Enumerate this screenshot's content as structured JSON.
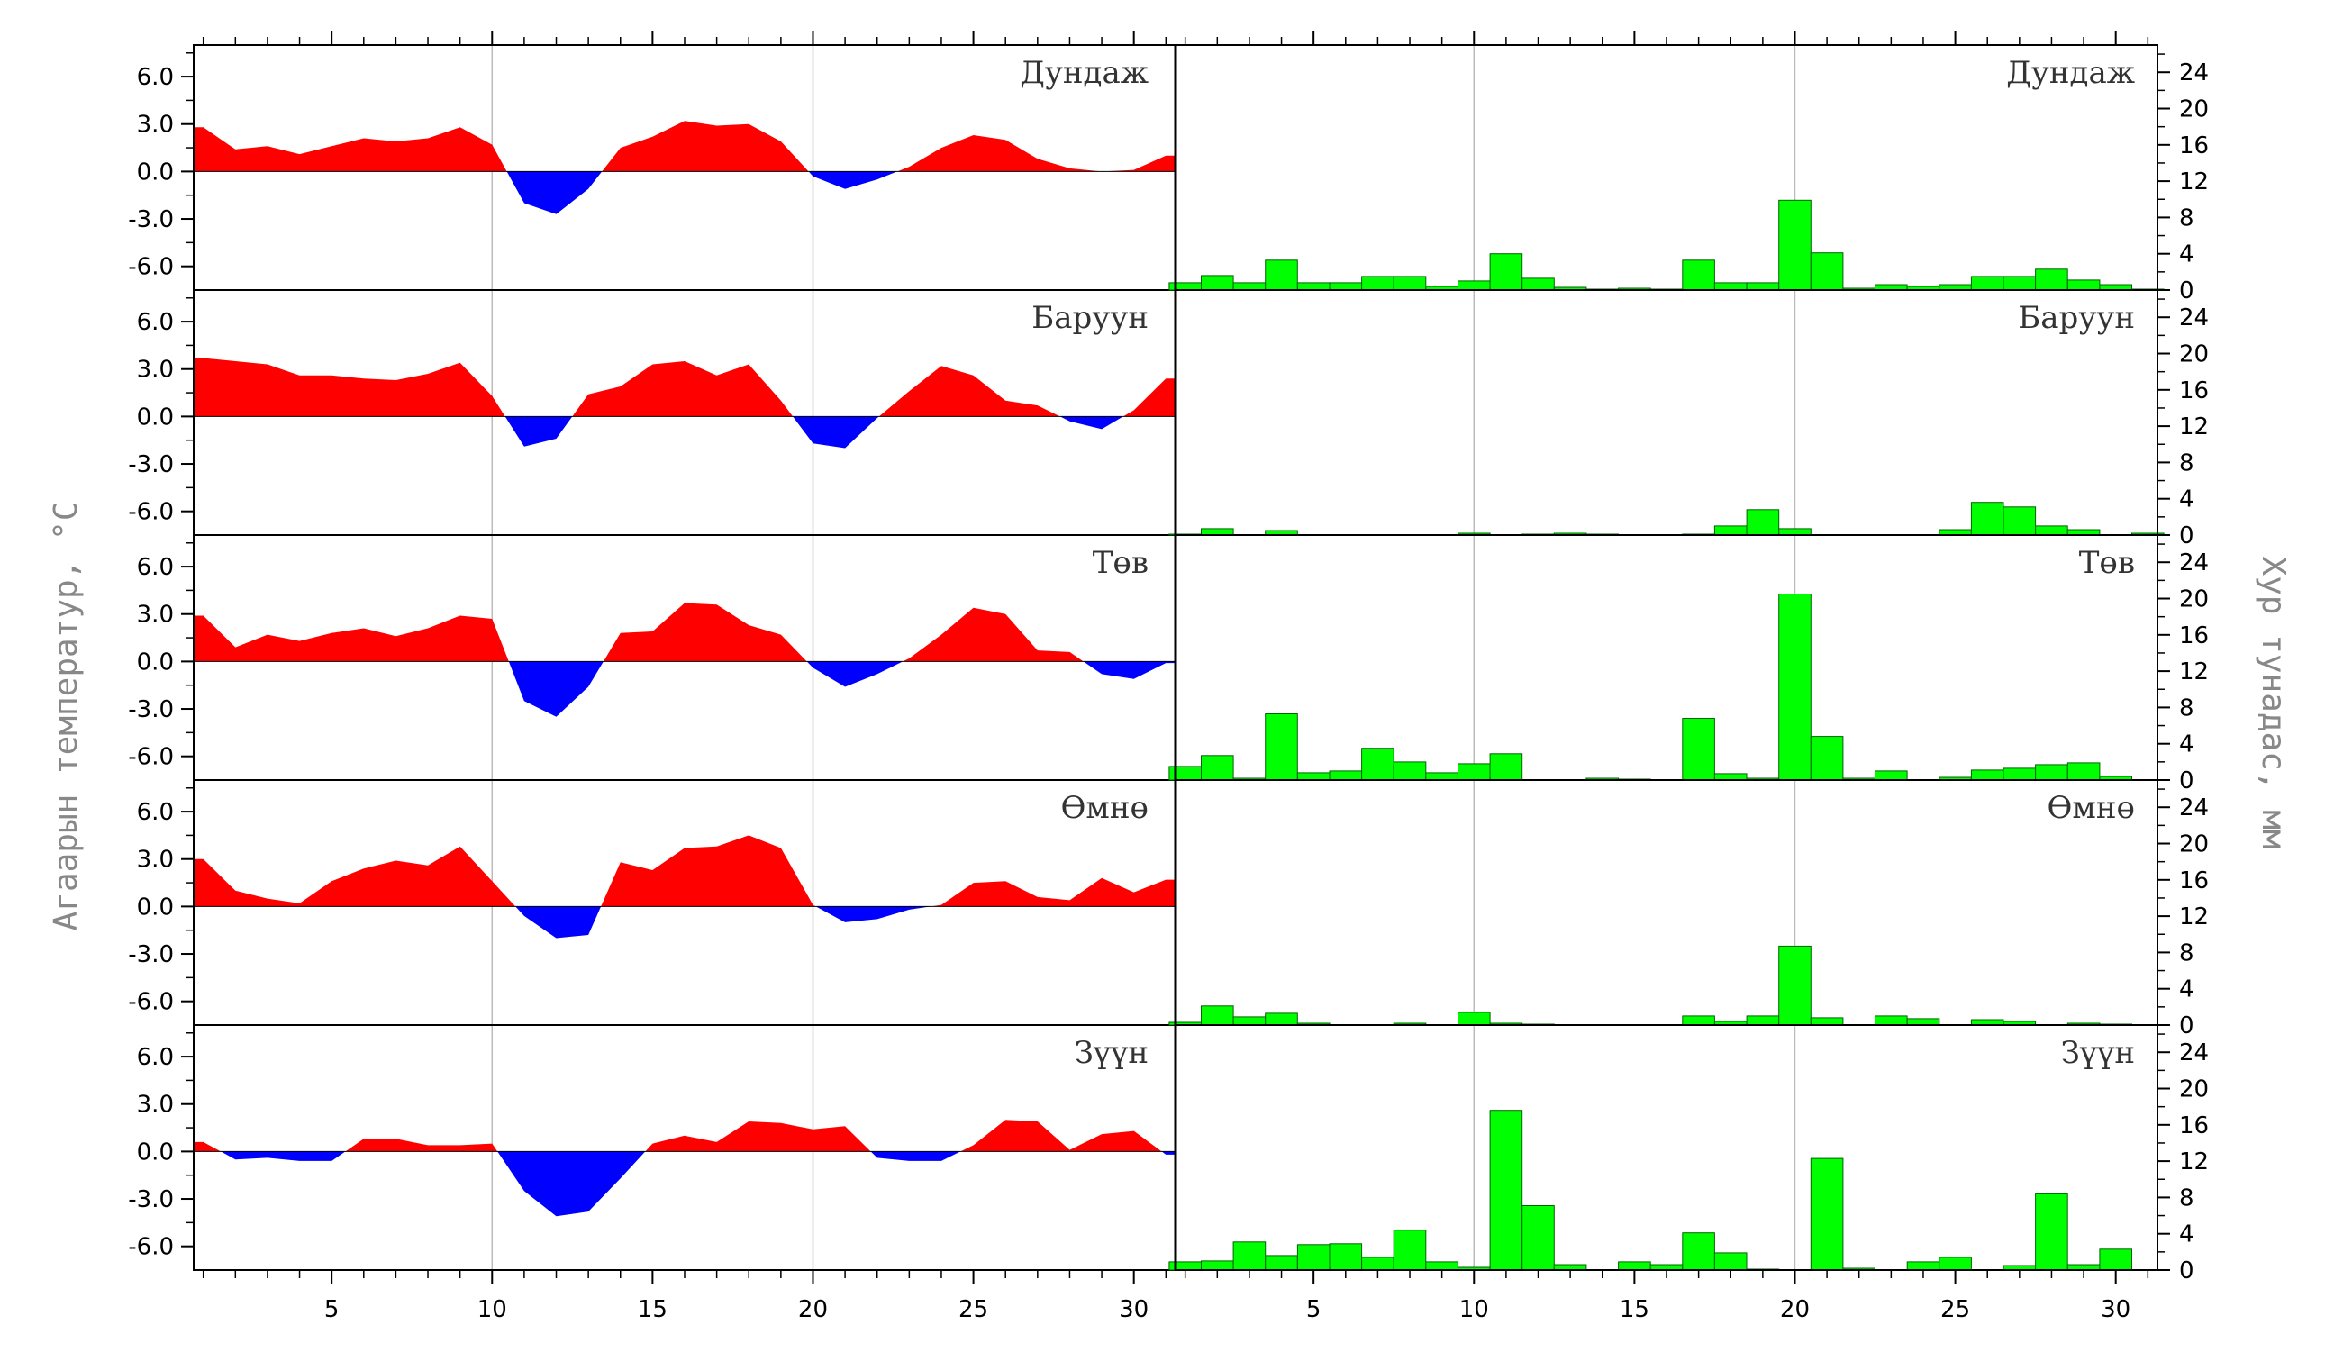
{
  "axis_titles": {
    "left": "Агаарын температур, °C",
    "right": "Хур тунадас, мм"
  },
  "colors": {
    "positive": "#ff0000",
    "negative": "#0000ff",
    "bar": "#00ff00",
    "bar_edge": "#006400",
    "grid": "#bbbbbb"
  },
  "chart_data": [
    {
      "type": "area",
      "panel": "Дундаж",
      "x": [
        1,
        2,
        3,
        4,
        5,
        6,
        7,
        8,
        9,
        10,
        11,
        12,
        13,
        14,
        15,
        16,
        17,
        18,
        19,
        20,
        21,
        22,
        23,
        24,
        25,
        26,
        27,
        28,
        29,
        30,
        31
      ],
      "values": [
        2.8,
        1.4,
        1.6,
        1.1,
        1.6,
        2.1,
        1.9,
        2.1,
        2.8,
        1.7,
        -2.0,
        -2.7,
        -1.1,
        1.5,
        2.2,
        3.2,
        2.9,
        3.0,
        1.9,
        -0.3,
        -1.1,
        -0.5,
        0.3,
        1.5,
        2.3,
        2.0,
        0.8,
        0.2,
        0.0,
        0.1,
        1.0
      ],
      "ylim": [
        -7.5,
        8.0
      ],
      "yticks": [
        "6.0",
        "3.0",
        "0.0",
        "-3.0",
        "-6.0"
      ],
      "grid_x": [
        10,
        20
      ]
    },
    {
      "type": "area",
      "panel": "Баруун",
      "x": [
        1,
        2,
        3,
        4,
        5,
        6,
        7,
        8,
        9,
        10,
        11,
        12,
        13,
        14,
        15,
        16,
        17,
        18,
        19,
        20,
        21,
        22,
        23,
        24,
        25,
        26,
        27,
        28,
        29,
        30,
        31
      ],
      "values": [
        3.7,
        3.5,
        3.3,
        2.6,
        2.6,
        2.4,
        2.3,
        2.7,
        3.4,
        1.3,
        -1.9,
        -1.4,
        1.4,
        1.9,
        3.3,
        3.5,
        2.6,
        3.3,
        1.0,
        -1.7,
        -2.0,
        -0.1,
        1.6,
        3.2,
        2.6,
        1.0,
        0.7,
        -0.3,
        -0.8,
        0.4,
        2.4
      ],
      "ylim": [
        -7.5,
        8.0
      ],
      "yticks": [
        "6.0",
        "3.0",
        "0.0",
        "-3.0",
        "-6.0"
      ],
      "grid_x": [
        10,
        20
      ]
    },
    {
      "type": "area",
      "panel": "Төв",
      "x": [
        1,
        2,
        3,
        4,
        5,
        6,
        7,
        8,
        9,
        10,
        11,
        12,
        13,
        14,
        15,
        16,
        17,
        18,
        19,
        20,
        21,
        22,
        23,
        24,
        25,
        26,
        27,
        28,
        29,
        30,
        31
      ],
      "values": [
        2.9,
        0.9,
        1.7,
        1.3,
        1.8,
        2.1,
        1.6,
        2.1,
        2.9,
        2.7,
        -2.5,
        -3.5,
        -1.6,
        1.8,
        1.9,
        3.7,
        3.6,
        2.3,
        1.7,
        -0.4,
        -1.6,
        -0.8,
        0.2,
        1.7,
        3.4,
        3.0,
        0.7,
        0.6,
        -0.8,
        -1.1,
        -0.1
      ],
      "ylim": [
        -7.5,
        8.0
      ],
      "yticks": [
        "6.0",
        "3.0",
        "0.0",
        "-3.0",
        "-6.0"
      ],
      "grid_x": [
        10,
        20
      ]
    },
    {
      "type": "area",
      "panel": "Өмнө",
      "x": [
        1,
        2,
        3,
        4,
        5,
        6,
        7,
        8,
        9,
        10,
        11,
        12,
        13,
        14,
        15,
        16,
        17,
        18,
        19,
        20,
        21,
        22,
        23,
        24,
        25,
        26,
        27,
        28,
        29,
        30,
        31
      ],
      "values": [
        3.0,
        1.0,
        0.5,
        0.2,
        1.6,
        2.4,
        2.9,
        2.6,
        3.8,
        1.6,
        -0.6,
        -2.0,
        -1.8,
        2.8,
        2.3,
        3.7,
        3.8,
        4.5,
        3.7,
        0.1,
        -1.0,
        -0.8,
        -0.2,
        0.1,
        1.5,
        1.6,
        0.6,
        0.4,
        1.8,
        0.9,
        1.7
      ],
      "ylim": [
        -7.5,
        8.0
      ],
      "yticks": [
        "6.0",
        "3.0",
        "0.0",
        "-3.0",
        "-6.0"
      ],
      "grid_x": [
        10,
        20
      ]
    },
    {
      "type": "area",
      "panel": "Зүүн",
      "x": [
        1,
        2,
        3,
        4,
        5,
        6,
        7,
        8,
        9,
        10,
        11,
        12,
        13,
        14,
        15,
        16,
        17,
        18,
        19,
        20,
        21,
        22,
        23,
        24,
        25,
        26,
        27,
        28,
        29,
        30,
        31
      ],
      "values": [
        0.6,
        -0.5,
        -0.4,
        -0.6,
        -0.6,
        0.8,
        0.8,
        0.4,
        0.4,
        0.5,
        -2.5,
        -4.1,
        -3.8,
        -1.7,
        0.5,
        1.0,
        0.6,
        1.9,
        1.8,
        1.4,
        1.6,
        -0.4,
        -0.6,
        -0.6,
        0.4,
        2.0,
        1.9,
        0.1,
        1.1,
        1.3,
        -0.2
      ],
      "ylim": [
        -7.5,
        8.0
      ],
      "yticks": [
        "6.0",
        "3.0",
        "0.0",
        "-3.0",
        "-6.0"
      ],
      "grid_x": [
        10,
        20
      ]
    },
    {
      "type": "bar",
      "panel": "Дундаж",
      "x": [
        1,
        2,
        3,
        4,
        5,
        6,
        7,
        8,
        9,
        10,
        11,
        12,
        13,
        14,
        15,
        16,
        17,
        18,
        19,
        20,
        21,
        22,
        23,
        24,
        25,
        26,
        27,
        28,
        29,
        30,
        31
      ],
      "values": [
        0.8,
        1.6,
        0.8,
        3.3,
        0.8,
        0.8,
        1.5,
        1.5,
        0.4,
        1.0,
        4.0,
        1.3,
        0.3,
        0.1,
        0.2,
        0.1,
        3.3,
        0.8,
        0.8,
        9.9,
        4.1,
        0.2,
        0.6,
        0.4,
        0.6,
        1.5,
        1.5,
        2.3,
        1.1,
        0.6,
        0.1
      ],
      "ylim": [
        0,
        27
      ],
      "yticks": [
        "24",
        "20",
        "16",
        "12",
        "8",
        "4",
        "0"
      ],
      "grid_x": [
        10,
        20
      ]
    },
    {
      "type": "bar",
      "panel": "Баруун",
      "x": [
        1,
        2,
        3,
        4,
        5,
        6,
        7,
        8,
        9,
        10,
        11,
        12,
        13,
        14,
        15,
        16,
        17,
        18,
        19,
        20,
        21,
        22,
        23,
        24,
        25,
        26,
        27,
        28,
        29,
        30,
        31
      ],
      "values": [
        0.1,
        0.7,
        0.0,
        0.5,
        0.0,
        0.0,
        0.0,
        0.0,
        0.0,
        0.2,
        0.0,
        0.1,
        0.2,
        0.1,
        0.0,
        0.0,
        0.1,
        1.0,
        2.8,
        0.7,
        0.0,
        0.0,
        0.0,
        0.0,
        0.6,
        3.6,
        3.1,
        1.0,
        0.6,
        0.0,
        0.2
      ],
      "ylim": [
        0,
        27
      ],
      "yticks": [
        "24",
        "20",
        "16",
        "12",
        "8",
        "4",
        "0"
      ],
      "grid_x": [
        10,
        20
      ]
    },
    {
      "type": "bar",
      "panel": "Төв",
      "x": [
        1,
        2,
        3,
        4,
        5,
        6,
        7,
        8,
        9,
        10,
        11,
        12,
        13,
        14,
        15,
        16,
        17,
        18,
        19,
        20,
        21,
        22,
        23,
        24,
        25,
        26,
        27,
        28,
        29,
        30,
        31
      ],
      "values": [
        1.5,
        2.7,
        0.2,
        7.3,
        0.8,
        1.0,
        3.5,
        2.0,
        0.8,
        1.8,
        2.9,
        0.0,
        0.0,
        0.2,
        0.1,
        0.0,
        6.8,
        0.7,
        0.2,
        20.5,
        4.8,
        0.2,
        1.0,
        0.0,
        0.3,
        1.1,
        1.3,
        1.7,
        1.9,
        0.4,
        0.0
      ],
      "ylim": [
        0,
        27
      ],
      "yticks": [
        "24",
        "20",
        "16",
        "12",
        "8",
        "4",
        "0"
      ],
      "grid_x": [
        10,
        20
      ]
    },
    {
      "type": "bar",
      "panel": "Өмнө",
      "x": [
        1,
        2,
        3,
        4,
        5,
        6,
        7,
        8,
        9,
        10,
        11,
        12,
        13,
        14,
        15,
        16,
        17,
        18,
        19,
        20,
        21,
        22,
        23,
        24,
        25,
        26,
        27,
        28,
        29,
        30,
        31
      ],
      "values": [
        0.3,
        2.1,
        0.9,
        1.3,
        0.2,
        0.0,
        0.0,
        0.2,
        0.0,
        1.4,
        0.2,
        0.1,
        0.0,
        0.0,
        0.0,
        0.0,
        1.0,
        0.4,
        1.0,
        8.7,
        0.8,
        0.0,
        1.0,
        0.7,
        0.0,
        0.6,
        0.4,
        0.0,
        0.2,
        0.1,
        0.0
      ],
      "ylim": [
        0,
        27
      ],
      "yticks": [
        "24",
        "20",
        "16",
        "12",
        "8",
        "4",
        "0"
      ],
      "grid_x": [
        10,
        20
      ]
    },
    {
      "type": "bar",
      "panel": "Зүүн",
      "x": [
        1,
        2,
        3,
        4,
        5,
        6,
        7,
        8,
        9,
        10,
        11,
        12,
        13,
        14,
        15,
        16,
        17,
        18,
        19,
        20,
        21,
        22,
        23,
        24,
        25,
        26,
        27,
        28,
        29,
        30,
        31
      ],
      "values": [
        0.9,
        1.0,
        3.1,
        1.6,
        2.8,
        2.9,
        1.4,
        4.4,
        0.9,
        0.3,
        17.6,
        7.1,
        0.6,
        0.0,
        0.9,
        0.6,
        4.1,
        1.9,
        0.1,
        0.0,
        12.3,
        0.2,
        0.0,
        0.9,
        1.4,
        0.0,
        0.5,
        8.4,
        0.6,
        2.3,
        0.0
      ],
      "ylim": [
        0,
        27
      ],
      "yticks": [
        "24",
        "20",
        "16",
        "12",
        "8",
        "4",
        "0"
      ],
      "grid_x": [
        10,
        20
      ]
    }
  ],
  "x_tick_labels": [
    "5",
    "10",
    "15",
    "20",
    "25",
    "30"
  ],
  "x_tick_values": [
    5,
    10,
    15,
    20,
    25,
    30
  ]
}
